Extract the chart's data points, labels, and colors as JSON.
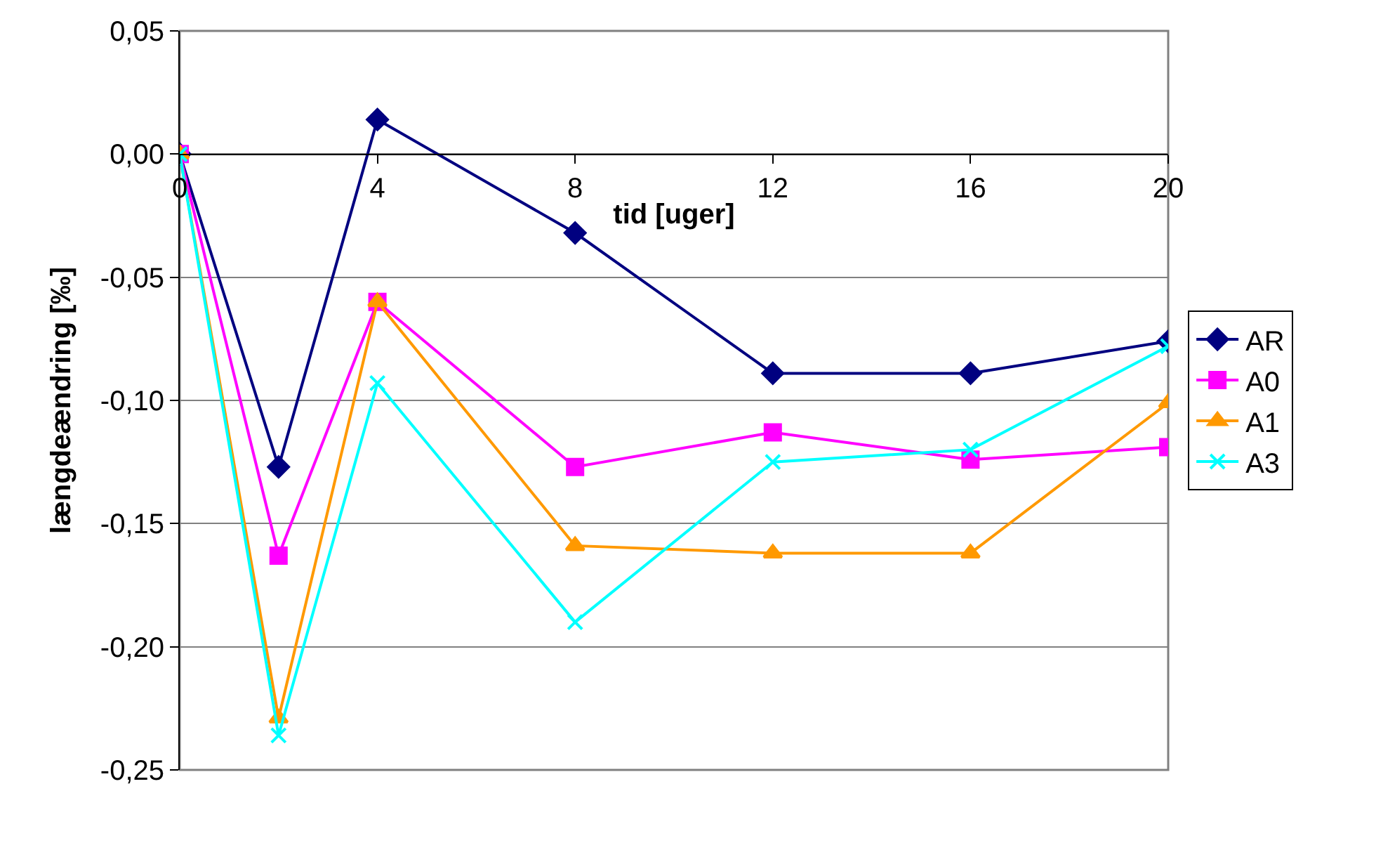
{
  "chart_data": {
    "type": "line",
    "xlabel": "tid [uger]",
    "ylabel": "længdeændring [‰]",
    "x": [
      0,
      2,
      4,
      8,
      12,
      16,
      20
    ],
    "series": [
      {
        "name": "AR",
        "color": "#000080",
        "marker": "diamond",
        "values": [
          0,
          -0.127,
          0.014,
          -0.032,
          -0.089,
          -0.089,
          -0.076
        ]
      },
      {
        "name": "A0",
        "color": "#ff00ff",
        "marker": "square",
        "values": [
          0,
          -0.163,
          -0.06,
          -0.127,
          -0.113,
          -0.124,
          -0.119
        ]
      },
      {
        "name": "A1",
        "color": "#ff9900",
        "marker": "triangle",
        "values": [
          0,
          -0.229,
          -0.06,
          -0.159,
          -0.162,
          -0.162,
          -0.101
        ]
      },
      {
        "name": "A3",
        "color": "#00ffff",
        "marker": "cross",
        "values": [
          0,
          -0.236,
          -0.093,
          -0.19,
          -0.125,
          -0.12,
          -0.078
        ]
      }
    ],
    "xlim": [
      0,
      20
    ],
    "xticks": [
      0,
      4,
      8,
      12,
      16,
      20
    ],
    "ylim": [
      -0.25,
      0.05
    ],
    "yticks": [
      {
        "value": -0.25,
        "label": "-0,25"
      },
      {
        "value": -0.2,
        "label": "-0,20"
      },
      {
        "value": -0.15,
        "label": "-0,15"
      },
      {
        "value": -0.1,
        "label": "-0,10"
      },
      {
        "value": -0.05,
        "label": "-0,05"
      },
      {
        "value": 0,
        "label": "0,00"
      },
      {
        "value": 0.05,
        "label": "0,05"
      }
    ],
    "grid": "y",
    "legend": "right",
    "line_style": "solid"
  }
}
